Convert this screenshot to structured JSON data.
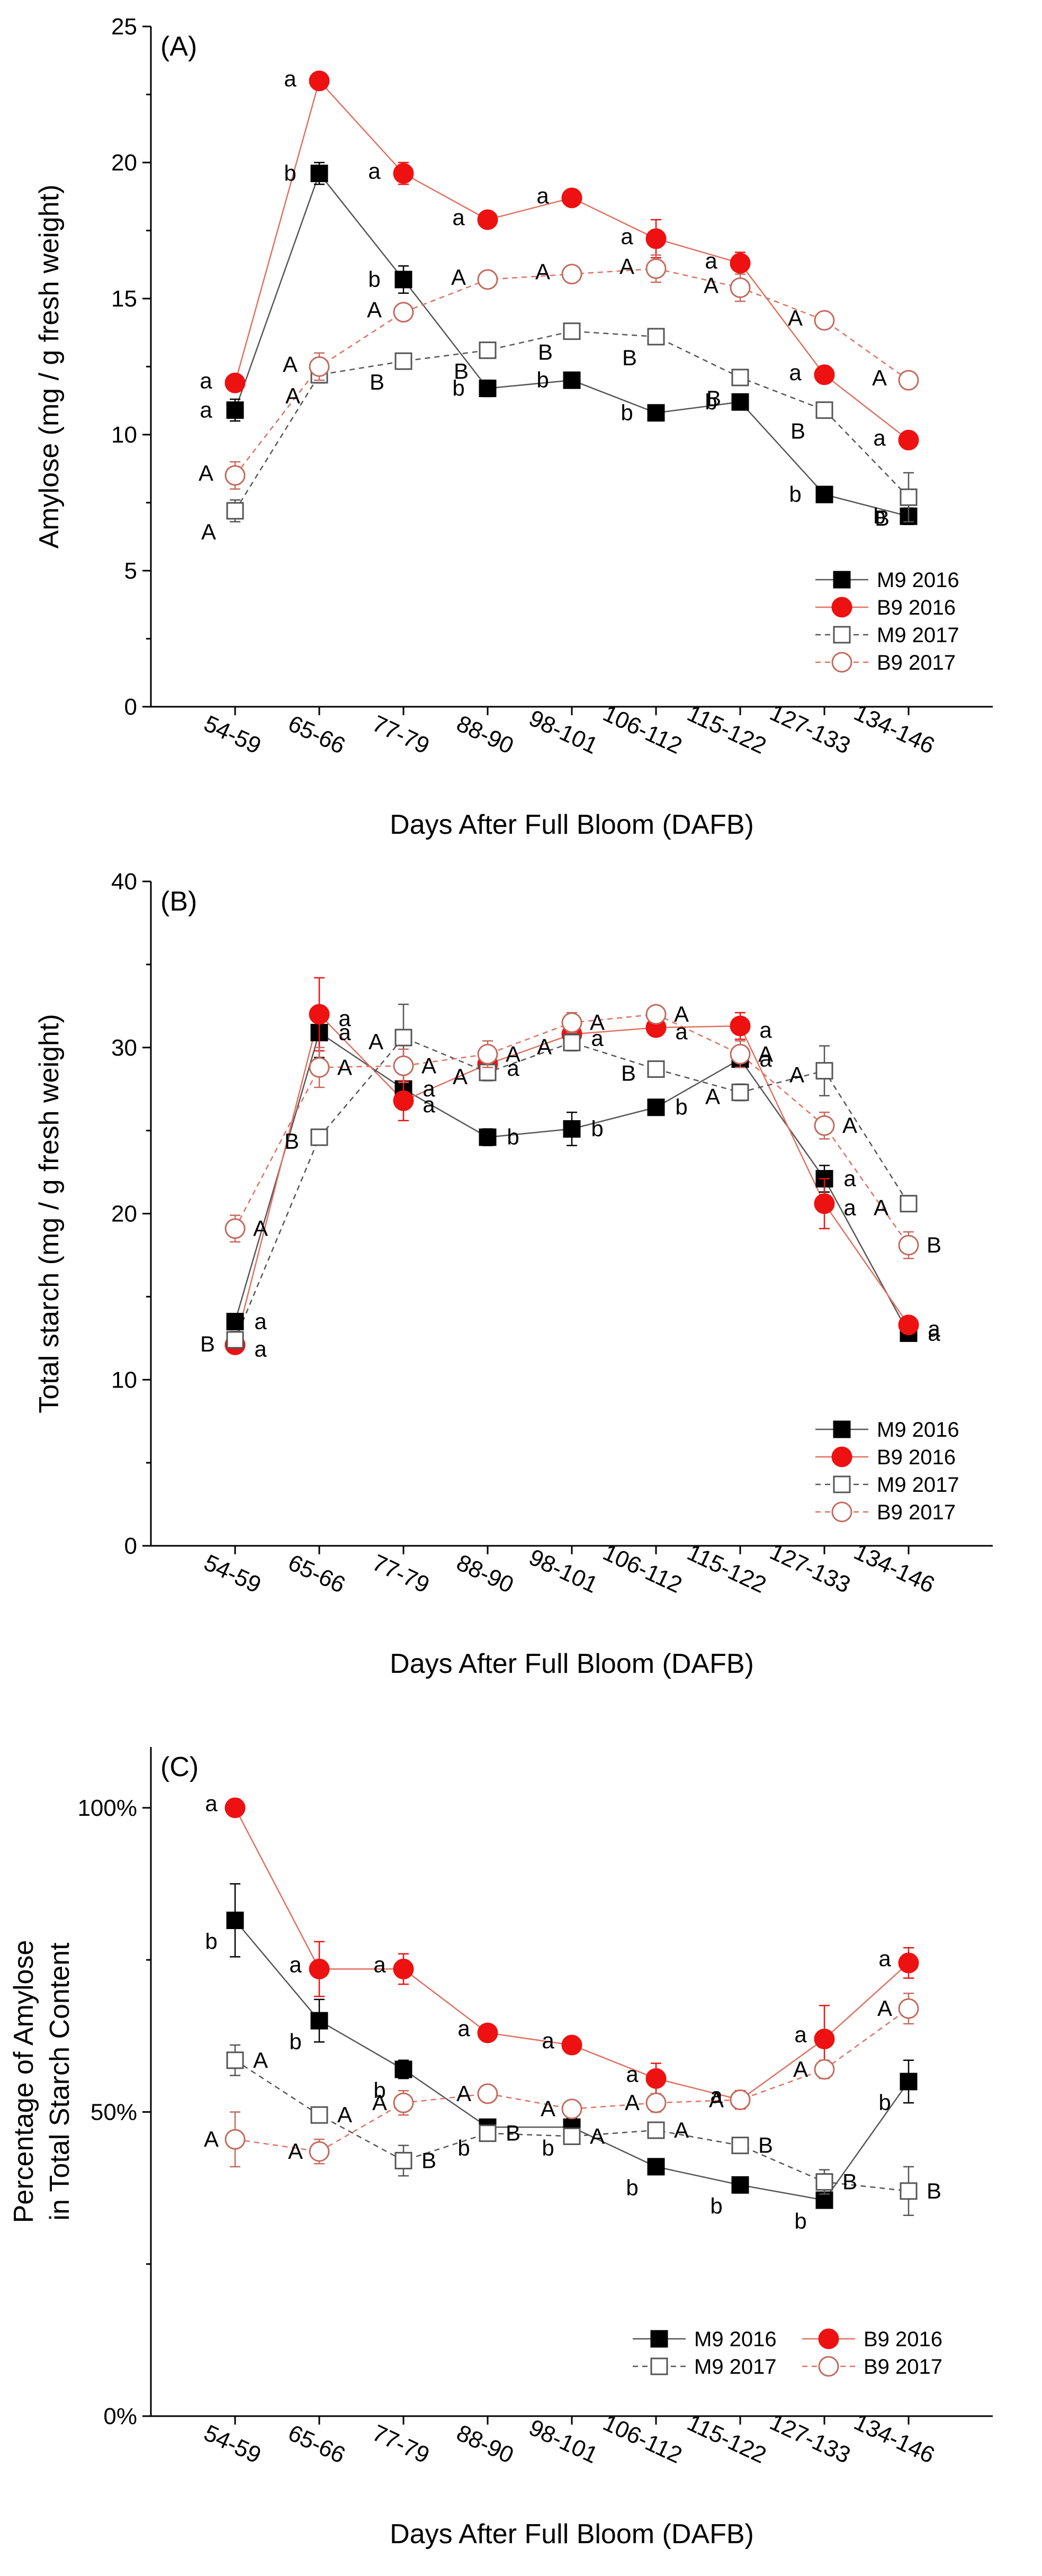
{
  "chart_data": [
    {
      "type": "line",
      "panel_label": "(A)",
      "xlabel": "Days After Full Bloom (DAFB)",
      "ylabel": "Amylose (mg / g fresh weight)",
      "categories": [
        "54-59",
        "65-66",
        "77-79",
        "88-90",
        "98-101",
        "106-112",
        "115-122",
        "127-133",
        "134-146"
      ],
      "ylim": [
        0,
        25
      ],
      "yticks": [
        0,
        5,
        10,
        15,
        20,
        25
      ],
      "ytick_labels": [
        "0",
        "5",
        "10",
        "15",
        "20",
        "25"
      ],
      "legend_position": "bottom-right",
      "series": [
        {
          "name": "M9 2016",
          "style": "m9_2016",
          "values": [
            10.9,
            19.6,
            15.7,
            11.7,
            12.0,
            10.8,
            11.2,
            7.8,
            7.0
          ],
          "errors": [
            0.4,
            0.4,
            0.5,
            0.3,
            0.2,
            0.2,
            0.2,
            0.1,
            0.3
          ],
          "labels": [
            "a",
            "b",
            "b",
            "b",
            "b",
            "b",
            "b",
            "b",
            "b"
          ]
        },
        {
          "name": "B9 2016",
          "style": "b9_2016",
          "values": [
            11.9,
            23.0,
            19.6,
            17.9,
            18.7,
            17.2,
            16.3,
            12.2,
            9.8
          ],
          "errors": [
            0.2,
            0.2,
            0.4,
            0.3,
            0.2,
            0.7,
            0.4,
            0.2,
            0.2
          ],
          "labels": [
            "a",
            "a",
            "a",
            "a",
            "a",
            "a",
            "a",
            "a",
            "a"
          ]
        },
        {
          "name": "M9 2017",
          "style": "m9_2017",
          "values": [
            7.2,
            12.2,
            12.7,
            13.1,
            13.8,
            13.6,
            12.1,
            10.9,
            7.7
          ],
          "errors": [
            0.4,
            0.3,
            0.2,
            0.2,
            0.2,
            0.2,
            0.2,
            0.2,
            0.9
          ],
          "labels": [
            "A",
            "A",
            "B",
            "B",
            "B",
            "B",
            "B",
            "B",
            "B"
          ]
        },
        {
          "name": "B9 2017",
          "style": "b9_2017",
          "values": [
            8.5,
            12.5,
            14.5,
            15.7,
            15.9,
            16.1,
            15.4,
            14.2,
            12.0
          ],
          "errors": [
            0.5,
            0.5,
            0.3,
            0.2,
            0.3,
            0.5,
            0.5,
            0.3,
            0.2
          ],
          "labels": [
            "A",
            "A",
            "A",
            "A",
            "A",
            "A",
            "A",
            "A",
            "A"
          ]
        }
      ]
    },
    {
      "type": "line",
      "panel_label": "(B)",
      "xlabel": "Days After Full Bloom (DAFB)",
      "ylabel": "Total starch (mg / g fresh weight)",
      "categories": [
        "54-59",
        "65-66",
        "77-79",
        "88-90",
        "98-101",
        "106-112",
        "115-122",
        "127-133",
        "134-146"
      ],
      "ylim": [
        0,
        40
      ],
      "yticks": [
        0,
        10,
        20,
        30,
        40
      ],
      "ytick_labels": [
        "0",
        "10",
        "20",
        "30",
        "40"
      ],
      "legend_position": "bottom-right",
      "series": [
        {
          "name": "M9 2016",
          "style": "m9_2016",
          "values": [
            13.5,
            30.9,
            27.5,
            24.6,
            25.1,
            26.4,
            29.3,
            22.1,
            12.8
          ],
          "errors": [
            0.4,
            1.5,
            1.0,
            0.5,
            1.0,
            0.3,
            0.5,
            0.8,
            0.3
          ],
          "labels": [
            "a",
            "a",
            "a",
            "b",
            "b",
            "b",
            "a",
            "a",
            "a"
          ]
        },
        {
          "name": "B9 2016",
          "style": "b9_2016",
          "values": [
            12.1,
            32.0,
            26.8,
            29.0,
            30.8,
            31.2,
            31.3,
            20.6,
            13.3
          ],
          "errors": [
            0.3,
            2.2,
            1.2,
            0.8,
            0.7,
            0.4,
            0.8,
            1.5,
            0.4
          ],
          "labels": [
            "a",
            "a",
            "a",
            "a",
            "a",
            "a",
            "a",
            "a",
            "a"
          ]
        },
        {
          "name": "M9 2017",
          "style": "m9_2017",
          "values": [
            12.4,
            24.6,
            30.6,
            28.5,
            30.3,
            28.7,
            27.3,
            28.6,
            20.6
          ],
          "errors": [
            0.5,
            0.3,
            2.0,
            0.5,
            0.5,
            0.3,
            0.5,
            1.5,
            0.4
          ],
          "labels": [
            "B",
            "B",
            "A",
            "A",
            "A",
            "B",
            "A",
            "A",
            "A"
          ]
        },
        {
          "name": "B9 2017",
          "style": "b9_2017",
          "values": [
            19.1,
            28.8,
            28.9,
            29.6,
            31.5,
            32.0,
            29.6,
            25.3,
            18.1
          ],
          "errors": [
            0.8,
            1.2,
            1.0,
            0.8,
            0.6,
            0.4,
            0.8,
            0.8,
            0.8
          ],
          "labels": [
            "A",
            "A",
            "A",
            "A",
            "A",
            "A",
            "A",
            "A",
            "B"
          ]
        }
      ]
    },
    {
      "type": "line",
      "panel_label": "(C)",
      "xlabel": "Days After Full Bloom (DAFB)",
      "ylabel": "Percentage of Amylose",
      "ylabel2": "in Total Starch Content",
      "categories": [
        "54-59",
        "65-66",
        "77-79",
        "88-90",
        "98-101",
        "106-112",
        "115-122",
        "127-133",
        "134-146"
      ],
      "ylim": [
        0,
        110
      ],
      "yticks": [
        0,
        50,
        100
      ],
      "ytick_labels": [
        "0%",
        "50%",
        "100%"
      ],
      "legend_position": "bottom-right",
      "series": [
        {
          "name": "M9 2016",
          "style": "m9_2016",
          "values": [
            81.5,
            65.0,
            57.0,
            47.5,
            47.5,
            41.0,
            38.0,
            35.5,
            55.0
          ],
          "errors": [
            6.0,
            3.5,
            1.5,
            1.0,
            1.5,
            1.0,
            0.5,
            1.0,
            3.5
          ],
          "labels": [
            "b",
            "b",
            "b",
            "b",
            "b",
            "b",
            "b",
            "b",
            "b"
          ]
        },
        {
          "name": "B9 2016",
          "style": "b9_2016",
          "values": [
            100.0,
            73.5,
            73.5,
            63.0,
            61.0,
            55.5,
            52.0,
            62.0,
            74.5
          ],
          "errors": [
            0.5,
            4.5,
            2.5,
            1.0,
            1.0,
            2.5,
            1.5,
            5.5,
            2.5
          ],
          "labels": [
            "a",
            "a",
            "a",
            "a",
            "a",
            "a",
            "a",
            "a",
            "a"
          ]
        },
        {
          "name": "M9 2017",
          "style": "m9_2017",
          "values": [
            58.5,
            49.5,
            42.0,
            46.5,
            46.0,
            47.0,
            44.5,
            38.5,
            37.0
          ],
          "errors": [
            2.5,
            1.0,
            2.5,
            1.0,
            1.0,
            1.0,
            1.0,
            2.0,
            4.0
          ],
          "labels": [
            "A",
            "A",
            "B",
            "B",
            "A",
            "A",
            "B",
            "B",
            "B"
          ]
        },
        {
          "name": "B9 2017",
          "style": "b9_2017",
          "values": [
            45.5,
            43.5,
            51.5,
            53.0,
            50.5,
            51.5,
            52.0,
            57.0,
            67.0
          ],
          "errors": [
            4.5,
            2.0,
            2.0,
            1.0,
            1.0,
            1.5,
            1.0,
            1.5,
            2.5
          ],
          "labels": [
            "A",
            "A",
            "A",
            "A",
            "A",
            "A",
            "A",
            "A",
            "A"
          ]
        }
      ]
    }
  ],
  "legend": {
    "m9_2016": "M9 2016",
    "b9_2016": "B9 2016",
    "m9_2017": "M9 2017",
    "b9_2017": "B9 2017"
  },
  "colors": {
    "m9_2016": "#000000",
    "b9_2016": "#ee1111",
    "m9_2017": "#555555",
    "b9_2017": "#c46a5c",
    "m9_line": "#555555",
    "b9_line": "#e07060"
  }
}
